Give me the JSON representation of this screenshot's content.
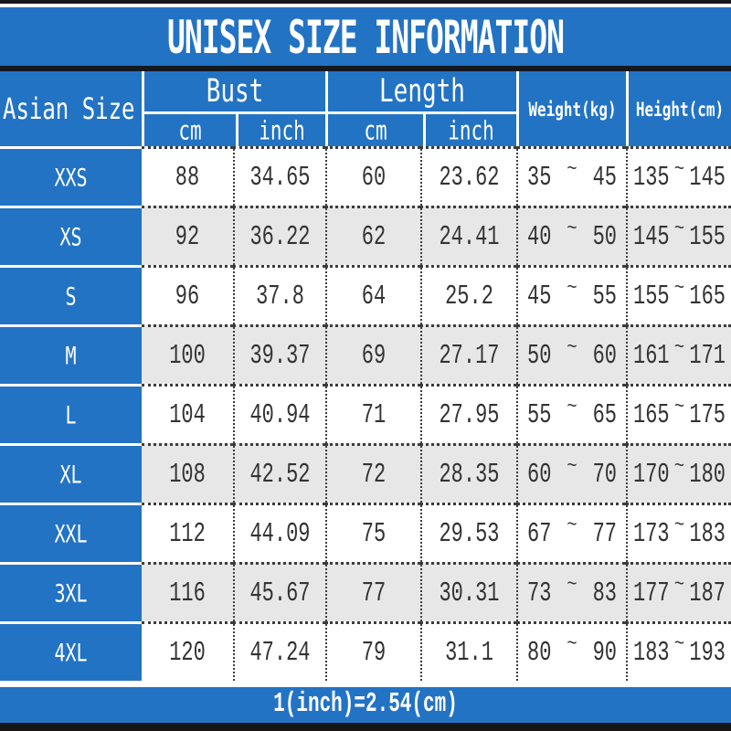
{
  "header": {
    "asian_size": "Asian Size",
    "bust": "Bust",
    "length": "Length",
    "cm": "cm",
    "inch": "inch",
    "weight": "Weight(kg)",
    "height": "Height(cm)"
  },
  "chart_data": {
    "type": "table",
    "title": "UNISEX SIZE INFORMATION",
    "columns": [
      "Asian Size",
      "Bust cm",
      "Bust inch",
      "Length cm",
      "Length inch",
      "Weight(kg)",
      "Height(cm)"
    ],
    "tilde": "~",
    "rows": [
      {
        "size": "XXS",
        "bust_cm": "88",
        "bust_inch": "34.65",
        "length_cm": "60",
        "length_inch": "23.62",
        "weight_min": "35",
        "weight_max": "45",
        "height_min": "135",
        "height_max": "145"
      },
      {
        "size": "XS",
        "bust_cm": "92",
        "bust_inch": "36.22",
        "length_cm": "62",
        "length_inch": "24.41",
        "weight_min": "40",
        "weight_max": "50",
        "height_min": "145",
        "height_max": "155"
      },
      {
        "size": "S",
        "bust_cm": "96",
        "bust_inch": "37.8",
        "length_cm": "64",
        "length_inch": "25.2",
        "weight_min": "45",
        "weight_max": "55",
        "height_min": "155",
        "height_max": "165"
      },
      {
        "size": "M",
        "bust_cm": "100",
        "bust_inch": "39.37",
        "length_cm": "69",
        "length_inch": "27.17",
        "weight_min": "50",
        "weight_max": "60",
        "height_min": "161",
        "height_max": "171"
      },
      {
        "size": "L",
        "bust_cm": "104",
        "bust_inch": "40.94",
        "length_cm": "71",
        "length_inch": "27.95",
        "weight_min": "55",
        "weight_max": "65",
        "height_min": "165",
        "height_max": "175"
      },
      {
        "size": "XL",
        "bust_cm": "108",
        "bust_inch": "42.52",
        "length_cm": "72",
        "length_inch": "28.35",
        "weight_min": "60",
        "weight_max": "70",
        "height_min": "170",
        "height_max": "180"
      },
      {
        "size": "XXL",
        "bust_cm": "112",
        "bust_inch": "44.09",
        "length_cm": "75",
        "length_inch": "29.53",
        "weight_min": "67",
        "weight_max": "77",
        "height_min": "173",
        "height_max": "183"
      },
      {
        "size": "3XL",
        "bust_cm": "116",
        "bust_inch": "45.67",
        "length_cm": "77",
        "length_inch": "30.31",
        "weight_min": "73",
        "weight_max": "83",
        "height_min": "177",
        "height_max": "187"
      },
      {
        "size": "4XL",
        "bust_cm": "120",
        "bust_inch": "47.24",
        "length_cm": "79",
        "length_inch": "31.1",
        "weight_min": "80",
        "weight_max": "90",
        "height_min": "183",
        "height_max": "193"
      }
    ],
    "note": "1(inch)=2.54(cm)"
  },
  "colors": {
    "accent_blue": "#2373c4",
    "alt_row": "#e7e7e7",
    "bar_black": "#161616",
    "dot_border": "#3c3c3c",
    "ink": "#333333"
  }
}
